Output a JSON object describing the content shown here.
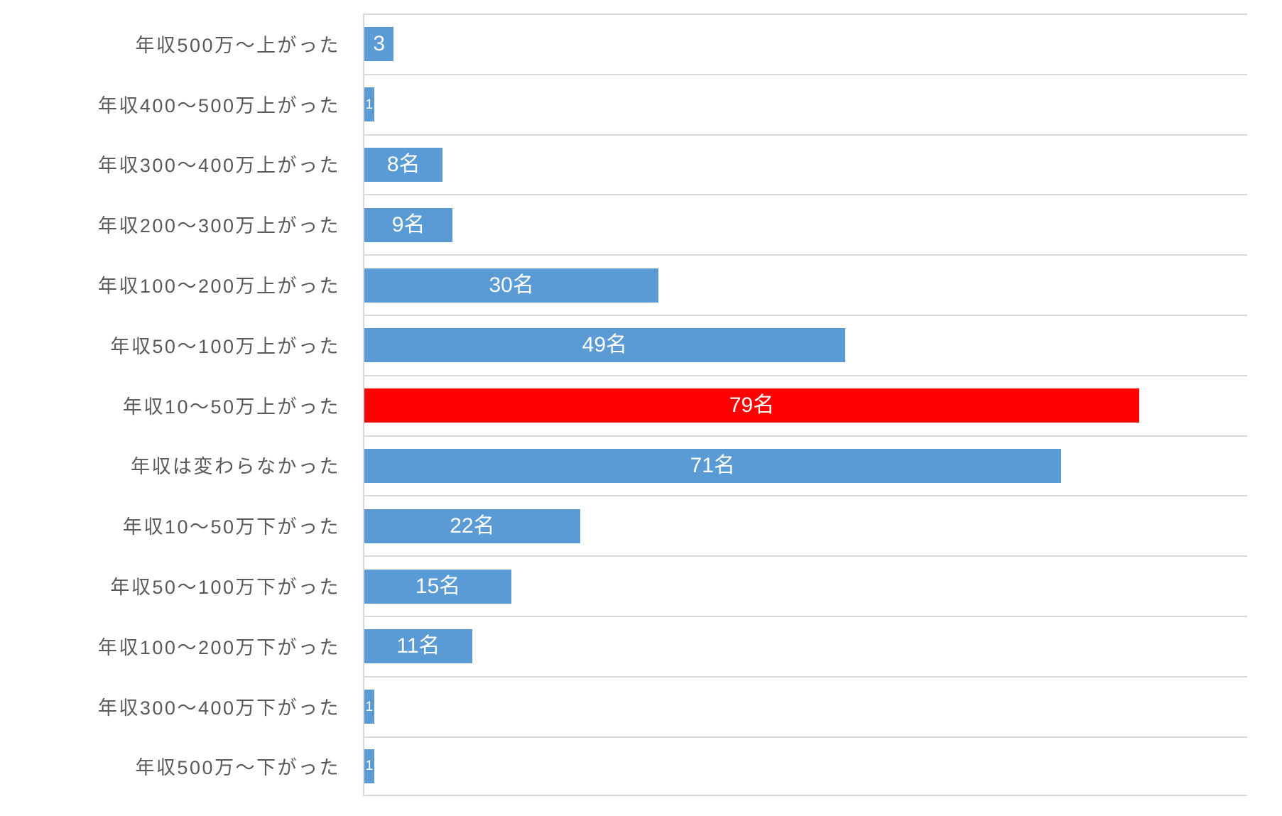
{
  "chart_data": {
    "type": "bar",
    "orientation": "horizontal",
    "title": "",
    "xlabel": "",
    "ylabel": "",
    "xlim": [
      0,
      90
    ],
    "grid": "category-separator-lines",
    "legend": "none",
    "categories": [
      "年収500万～上がった",
      "年収400～500万上がった",
      "年収300～400万上がった",
      "年収200～300万上がった",
      "年収100～200万上がった",
      "年収50～100万上がった",
      "年収10～50万上がった",
      "年収は変わらなかった",
      "年収10～50万下がった",
      "年収50～100万下がった",
      "年収100～200万下がった",
      "年収300～400万下がった",
      "年収500万～下がった"
    ],
    "values": [
      3,
      1,
      8,
      9,
      30,
      49,
      79,
      71,
      22,
      15,
      11,
      1,
      1
    ],
    "bar_labels": [
      "3",
      "1",
      "8名",
      "9名",
      "30名",
      "49名",
      "79名",
      "71名",
      "22名",
      "15名",
      "11名",
      "1",
      "1"
    ],
    "highlight_index": 6,
    "colors": {
      "bar": "#5b9bd5",
      "highlight": "#ff0000",
      "gridline": "#d9d9d9",
      "category_text": "#595959",
      "bar_label_text": "#ffffff"
    }
  }
}
